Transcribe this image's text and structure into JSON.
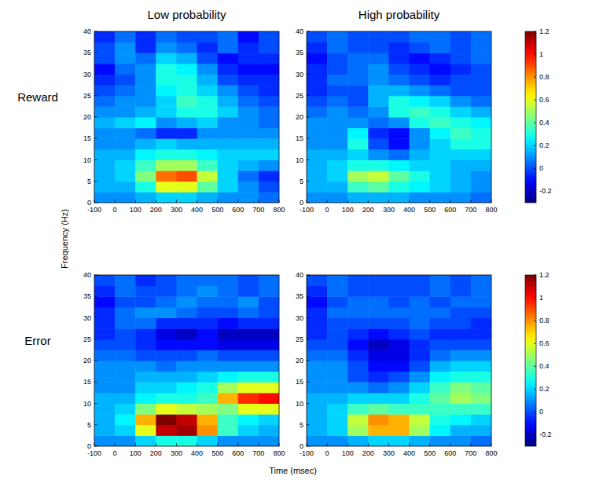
{
  "chart_data": {
    "type": "heatmap",
    "column_titles": [
      "Low probability",
      "High probability"
    ],
    "row_titles": [
      "Reward",
      "Error"
    ],
    "x_label": "Time (msec)",
    "y_label": "Frequency (Hz)",
    "xlim": [
      -100,
      800
    ],
    "xticks": [
      -100,
      0,
      100,
      200,
      300,
      400,
      500,
      600,
      700,
      800
    ],
    "ylim": [
      0,
      40
    ],
    "yticks": [
      0,
      5,
      10,
      15,
      20,
      25,
      30,
      35,
      40
    ],
    "x_bins": [
      -100,
      0,
      100,
      200,
      300,
      400,
      500,
      600,
      700,
      800
    ],
    "y_bins": [
      0,
      2.5,
      5,
      7.5,
      10,
      12.5,
      15,
      17.5,
      20,
      22.5,
      25,
      27.5,
      30,
      32.5,
      35,
      37.5,
      40
    ],
    "colorbar": {
      "range": [
        -0.3,
        1.2
      ],
      "ticks": [
        -0.2,
        0,
        0.2,
        0.4,
        0.6,
        0.8,
        1,
        1.2
      ]
    },
    "panels": [
      {
        "cells": [
          [
            0.1,
            0.1,
            0.15,
            0.2,
            0.2,
            0.15,
            0.1,
            0.1,
            0.05
          ],
          [
            0.15,
            0.15,
            0.3,
            0.6,
            0.6,
            0.4,
            0.2,
            0.1,
            0.0
          ],
          [
            0.15,
            0.2,
            0.45,
            0.85,
            0.9,
            0.55,
            0.2,
            0.05,
            -0.05
          ],
          [
            0.15,
            0.2,
            0.35,
            0.5,
            0.5,
            0.35,
            0.2,
            0.15,
            0.1
          ],
          [
            0.15,
            0.15,
            0.25,
            0.3,
            0.3,
            0.25,
            0.2,
            0.2,
            0.2
          ],
          [
            0.1,
            0.1,
            0.15,
            0.2,
            0.15,
            0.15,
            0.15,
            0.15,
            0.15
          ],
          [
            0.1,
            0.1,
            0.05,
            -0.05,
            -0.05,
            0.1,
            0.1,
            0.1,
            0.1
          ],
          [
            0.15,
            0.2,
            0.25,
            0.1,
            0.15,
            0.2,
            0.1,
            0.1,
            0.05
          ],
          [
            0.1,
            0.1,
            0.15,
            0.2,
            0.3,
            0.3,
            0.2,
            0.1,
            0.05
          ],
          [
            0.05,
            0.1,
            0.1,
            0.2,
            0.35,
            0.3,
            0.15,
            0.05,
            0.0
          ],
          [
            0.0,
            0.05,
            0.1,
            0.25,
            0.3,
            0.2,
            0.1,
            0.0,
            -0.05
          ],
          [
            -0.05,
            0.0,
            0.1,
            0.3,
            0.3,
            0.15,
            0.0,
            -0.05,
            -0.05
          ],
          [
            -0.1,
            0.05,
            0.1,
            0.3,
            0.25,
            0.1,
            -0.05,
            -0.1,
            -0.1
          ],
          [
            0.0,
            0.1,
            0.05,
            0.2,
            0.15,
            0.0,
            -0.1,
            -0.05,
            -0.05
          ],
          [
            0.0,
            0.1,
            -0.05,
            0.1,
            0.05,
            -0.05,
            0.05,
            -0.05,
            0.0
          ],
          [
            -0.05,
            0.05,
            -0.05,
            0.05,
            0.0,
            0.0,
            0.05,
            -0.1,
            0.0
          ]
        ]
      },
      {
        "cells": [
          [
            0.1,
            0.1,
            0.15,
            0.15,
            0.15,
            0.1,
            0.1,
            0.1,
            0.05
          ],
          [
            0.15,
            0.15,
            0.35,
            0.4,
            0.3,
            0.25,
            0.2,
            0.15,
            0.1
          ],
          [
            0.15,
            0.2,
            0.5,
            0.55,
            0.4,
            0.3,
            0.2,
            0.15,
            0.1
          ],
          [
            0.15,
            0.2,
            0.3,
            0.3,
            0.25,
            0.2,
            0.2,
            0.15,
            0.15
          ],
          [
            0.15,
            0.15,
            0.2,
            0.1,
            0.05,
            0.15,
            0.2,
            0.2,
            0.2
          ],
          [
            0.1,
            0.1,
            0.3,
            0.0,
            -0.1,
            0.1,
            0.2,
            0.3,
            0.3
          ],
          [
            0.1,
            0.1,
            0.25,
            -0.05,
            -0.1,
            0.1,
            0.25,
            0.35,
            0.3
          ],
          [
            0.1,
            0.1,
            0.1,
            0.05,
            0.1,
            0.3,
            0.35,
            0.3,
            0.25
          ],
          [
            0.05,
            0.1,
            0.05,
            0.1,
            0.3,
            0.35,
            0.3,
            0.2,
            0.15
          ],
          [
            0.0,
            0.05,
            0.0,
            0.15,
            0.3,
            0.25,
            0.2,
            0.1,
            0.05
          ],
          [
            -0.05,
            0.0,
            0.0,
            0.15,
            0.15,
            0.1,
            0.05,
            0.0,
            0.0
          ],
          [
            -0.05,
            0.05,
            0.05,
            0.1,
            0.05,
            0.0,
            -0.05,
            0.0,
            0.0
          ],
          [
            -0.05,
            0.0,
            0.05,
            0.1,
            0.0,
            -0.05,
            -0.1,
            -0.05,
            0.0
          ],
          [
            -0.1,
            0.0,
            0.05,
            0.05,
            -0.05,
            -0.1,
            -0.05,
            0.0,
            0.05
          ],
          [
            -0.05,
            0.05,
            0.0,
            0.0,
            -0.05,
            0.0,
            0.05,
            0.0,
            0.05
          ],
          [
            0.0,
            0.05,
            0.0,
            0.0,
            0.0,
            0.05,
            0.05,
            0.0,
            0.05
          ]
        ]
      },
      {
        "cells": [
          [
            0.1,
            0.1,
            0.2,
            0.3,
            0.3,
            0.2,
            0.1,
            0.1,
            0.1
          ],
          [
            0.15,
            0.2,
            0.6,
            1.1,
            1.15,
            0.8,
            0.35,
            0.2,
            0.15
          ],
          [
            0.15,
            0.25,
            0.75,
            1.2,
            1.1,
            0.75,
            0.35,
            0.25,
            0.2
          ],
          [
            0.15,
            0.2,
            0.45,
            0.6,
            0.55,
            0.5,
            0.45,
            0.6,
            0.6
          ],
          [
            0.15,
            0.15,
            0.25,
            0.3,
            0.3,
            0.35,
            0.75,
            0.95,
            1.0
          ],
          [
            0.1,
            0.1,
            0.2,
            0.2,
            0.25,
            0.3,
            0.5,
            0.6,
            0.6
          ],
          [
            0.1,
            0.1,
            0.15,
            0.15,
            0.15,
            0.2,
            0.25,
            0.3,
            0.3
          ],
          [
            0.1,
            0.1,
            0.1,
            0.05,
            0.1,
            0.1,
            0.1,
            0.1,
            0.1
          ],
          [
            0.05,
            0.05,
            0.0,
            0.0,
            0.0,
            0.05,
            0.0,
            0.0,
            0.0
          ],
          [
            0.0,
            0.0,
            -0.05,
            -0.1,
            -0.1,
            -0.1,
            -0.15,
            -0.15,
            -0.15
          ],
          [
            -0.05,
            0.0,
            -0.05,
            -0.15,
            -0.2,
            -0.1,
            -0.2,
            -0.2,
            -0.2
          ],
          [
            -0.05,
            0.05,
            0.05,
            -0.05,
            -0.05,
            -0.05,
            -0.1,
            -0.05,
            -0.05
          ],
          [
            -0.05,
            0.05,
            0.1,
            0.1,
            0.05,
            0.0,
            0.0,
            0.05,
            0.0
          ],
          [
            -0.1,
            0.0,
            0.0,
            0.05,
            0.1,
            0.05,
            0.05,
            0.1,
            0.0
          ],
          [
            -0.05,
            0.05,
            0.0,
            0.0,
            0.05,
            0.1,
            0.05,
            0.0,
            0.05
          ],
          [
            0.0,
            0.05,
            -0.05,
            0.0,
            0.05,
            0.05,
            0.05,
            0.0,
            0.05
          ]
        ]
      },
      {
        "cells": [
          [
            0.1,
            0.1,
            0.15,
            0.2,
            0.2,
            0.15,
            0.1,
            0.1,
            0.05
          ],
          [
            0.15,
            0.2,
            0.5,
            0.75,
            0.75,
            0.5,
            0.25,
            0.15,
            0.15
          ],
          [
            0.15,
            0.2,
            0.55,
            0.8,
            0.75,
            0.55,
            0.3,
            0.25,
            0.2
          ],
          [
            0.15,
            0.2,
            0.35,
            0.4,
            0.35,
            0.35,
            0.35,
            0.35,
            0.35
          ],
          [
            0.15,
            0.15,
            0.2,
            0.2,
            0.2,
            0.3,
            0.4,
            0.5,
            0.45
          ],
          [
            0.1,
            0.1,
            0.1,
            0.05,
            0.1,
            0.2,
            0.35,
            0.45,
            0.4
          ],
          [
            0.1,
            0.1,
            0.0,
            -0.05,
            0.0,
            0.1,
            0.25,
            0.3,
            0.3
          ],
          [
            0.1,
            0.1,
            0.0,
            -0.1,
            -0.1,
            0.0,
            0.15,
            0.2,
            0.2
          ],
          [
            0.05,
            0.05,
            -0.05,
            -0.15,
            -0.15,
            -0.05,
            0.05,
            0.1,
            0.1
          ],
          [
            0.0,
            0.0,
            -0.1,
            -0.2,
            -0.15,
            -0.05,
            0.0,
            0.0,
            0.0
          ],
          [
            -0.05,
            0.0,
            -0.05,
            -0.1,
            -0.05,
            0.0,
            -0.05,
            -0.05,
            -0.05
          ],
          [
            -0.05,
            0.0,
            0.0,
            0.0,
            0.0,
            0.05,
            0.0,
            0.0,
            -0.05
          ],
          [
            -0.05,
            0.05,
            0.05,
            0.05,
            0.05,
            0.05,
            0.05,
            0.0,
            0.0
          ],
          [
            -0.1,
            0.0,
            0.05,
            0.05,
            0.0,
            0.05,
            0.0,
            0.05,
            0.05
          ],
          [
            -0.05,
            0.05,
            0.0,
            0.0,
            0.0,
            0.0,
            0.05,
            0.0,
            0.05
          ],
          [
            0.0,
            0.05,
            0.0,
            0.0,
            0.0,
            0.0,
            0.05,
            0.0,
            0.05
          ]
        ]
      }
    ]
  }
}
